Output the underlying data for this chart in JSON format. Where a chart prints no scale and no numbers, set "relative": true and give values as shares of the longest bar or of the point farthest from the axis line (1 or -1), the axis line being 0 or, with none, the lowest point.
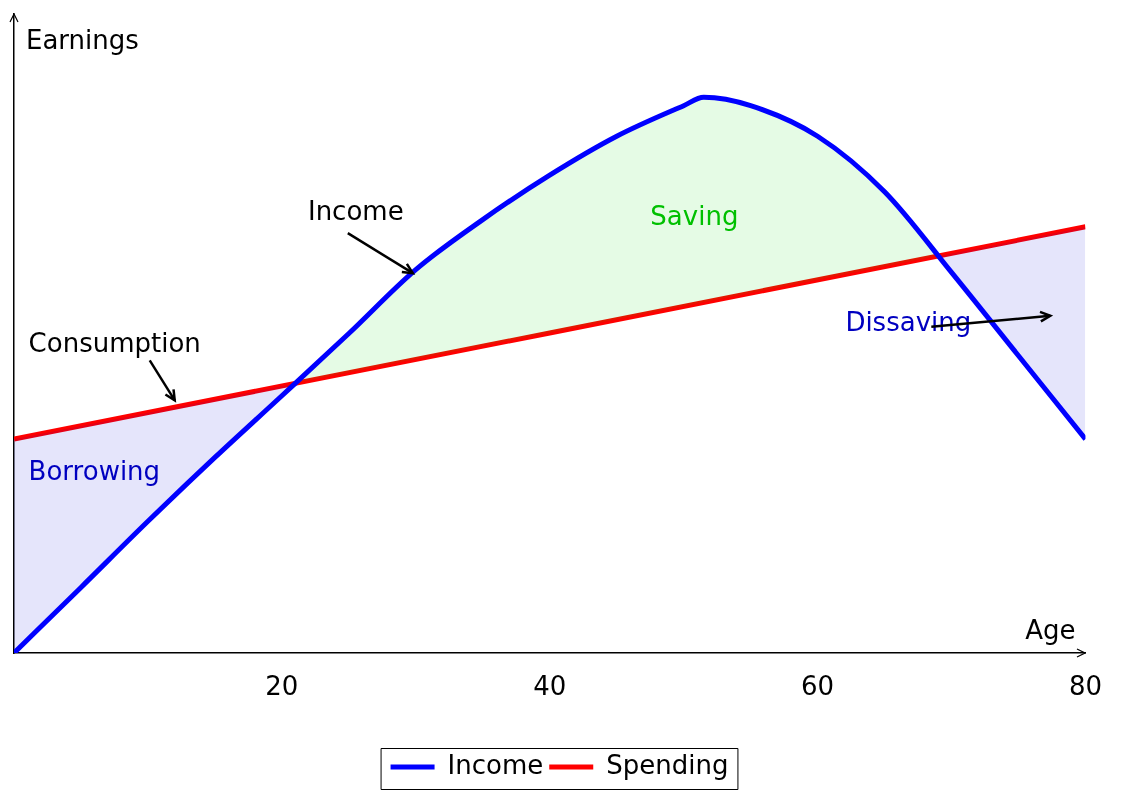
{
  "chart_data": {
    "type": "line",
    "relative": true,
    "xlabel": "Age",
    "ylabel": "Earnings",
    "xlim": [
      0,
      80
    ],
    "xticks": [
      20,
      40,
      60,
      80
    ],
    "grid": false,
    "legend": "bottom",
    "marker": "none",
    "line_style": "solid",
    "series": [
      {
        "name": "Income",
        "color": "#0000ff",
        "x": [
          0,
          5,
          10,
          15,
          20,
          25,
          30,
          35,
          40,
          45,
          50,
          51.5,
          55,
          60,
          65,
          70,
          75,
          80
        ],
        "values": [
          0,
          0.118,
          0.237,
          0.352,
          0.463,
          0.575,
          0.69,
          0.78,
          0.86,
          0.93,
          0.985,
          1,
          0.985,
          0.93,
          0.83,
          0.685,
          0.535,
          0.385
        ]
      },
      {
        "name": "Spending",
        "color": "#ff0000",
        "x": [
          0,
          80
        ],
        "values": [
          0.385,
          0.767
        ]
      }
    ],
    "annotations": [
      {
        "text": "Income",
        "x": 30,
        "y": 0.68
      },
      {
        "text": "Consumption",
        "x": 12,
        "y": 0.442
      },
      "Saving",
      "Borrowing",
      "Dissaving"
    ]
  }
}
